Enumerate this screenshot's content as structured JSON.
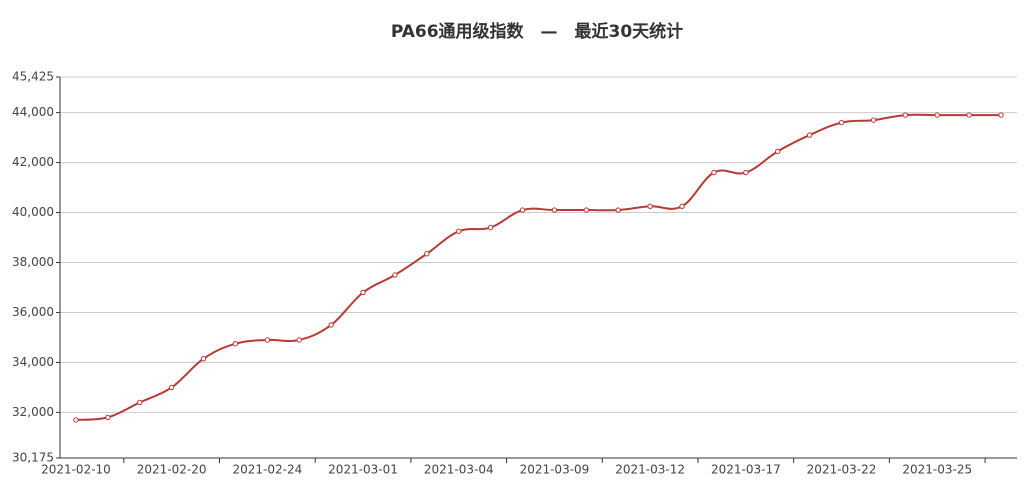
{
  "chart_data": {
    "type": "line",
    "title": "PA66通用级指数　—　最近30天统计",
    "categories": [
      "2021-02-10",
      null,
      null,
      "2021-02-20",
      null,
      null,
      "2021-02-24",
      null,
      null,
      "2021-03-01",
      null,
      null,
      "2021-03-04",
      null,
      null,
      "2021-03-09",
      null,
      null,
      "2021-03-12",
      null,
      null,
      "2021-03-17",
      null,
      null,
      "2021-03-22",
      null,
      null,
      "2021-03-25",
      null,
      null
    ],
    "series": [
      {
        "color": "#b83a35",
        "values": [
          31700,
          31800,
          32400,
          33000,
          34150,
          34750,
          34900,
          34900,
          35500,
          36800,
          37500,
          38350,
          39250,
          39400,
          40100,
          40100,
          40100,
          40100,
          40250,
          40250,
          41600,
          41600,
          42450,
          43100,
          43600,
          43700,
          43900,
          43900,
          43900,
          43900
        ]
      }
    ],
    "ylim": [
      30175,
      45425
    ],
    "yticks": [
      {
        "value": 30175,
        "label": "30,175"
      },
      {
        "value": 32000,
        "label": "32,000"
      },
      {
        "value": 34000,
        "label": "34,000"
      },
      {
        "value": 36000,
        "label": "36,000"
      },
      {
        "value": 38000,
        "label": "38,000"
      },
      {
        "value": 40000,
        "label": "40,000"
      },
      {
        "value": 42000,
        "label": "42,000"
      },
      {
        "value": 44000,
        "label": "44,000"
      },
      {
        "value": 45425,
        "label": "45,425"
      }
    ],
    "grid": true
  }
}
